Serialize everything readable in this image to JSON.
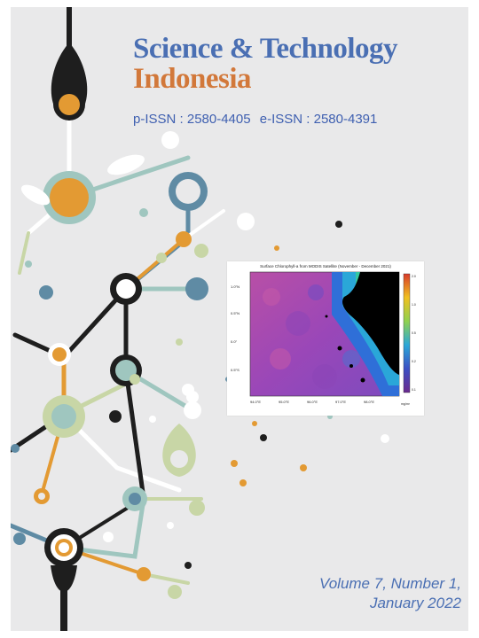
{
  "journal": {
    "title_line_1": "Science & Technology",
    "title_line_2": "Indonesia",
    "p_issn": "p-ISSN : 2580-4405",
    "e_issn": "e-ISSN : 2580-4391"
  },
  "issue": {
    "volume_line": "Volume 7, Number 1,",
    "date_line": "January 2022"
  },
  "cover_figure": {
    "title": "Surface Chlorophyll-a from MODIS Satellite (November - December 2021)"
  },
  "colors": {
    "title_blue": "#4a6fb3",
    "title_orange": "#d2783a",
    "background": "#e9e9ea"
  }
}
